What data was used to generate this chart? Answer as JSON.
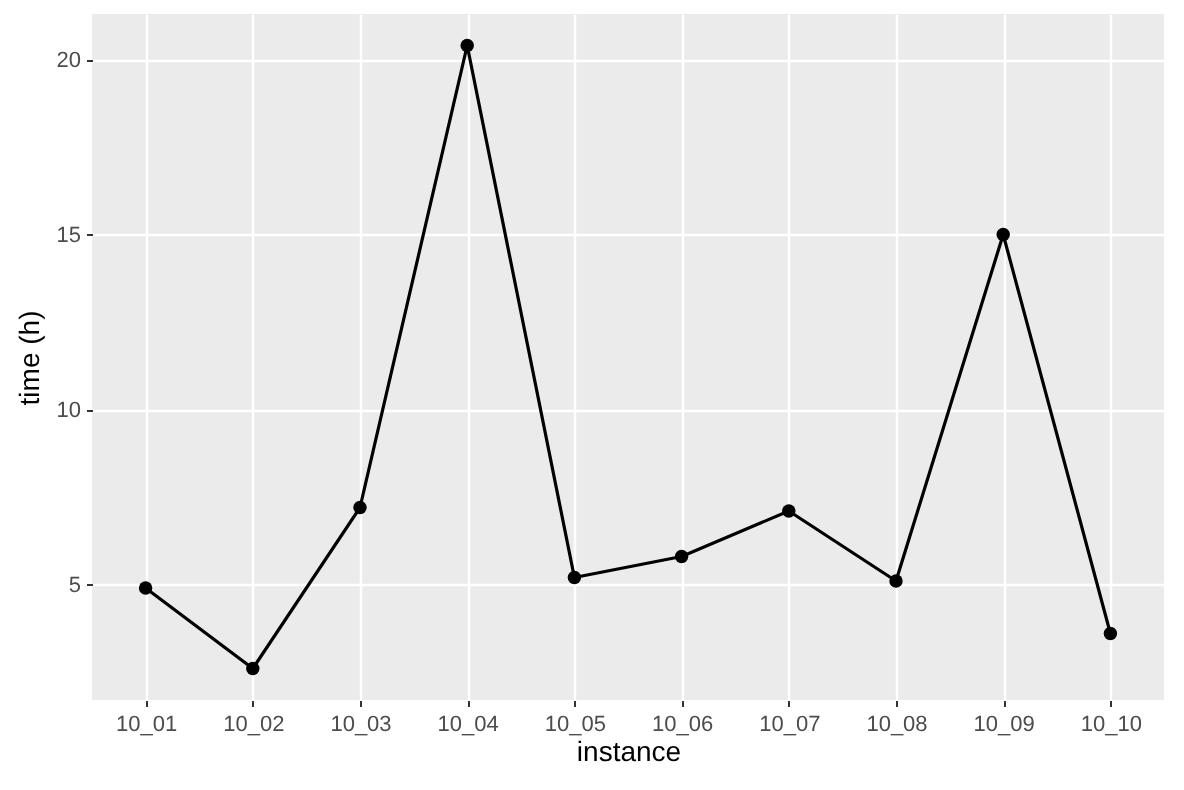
{
  "chart_data": {
    "type": "line",
    "xlabel": "instance",
    "ylabel": "time (h)",
    "categories": [
      "10_01",
      "10_02",
      "10_03",
      "10_04",
      "10_05",
      "10_06",
      "10_07",
      "10_08",
      "10_09",
      "10_10"
    ],
    "series": [
      {
        "color": "#000000",
        "values": [
          4.9,
          2.6,
          7.2,
          20.4,
          5.2,
          5.8,
          7.1,
          5.1,
          15.0,
          3.6
        ]
      }
    ],
    "ylim": [
      1.7,
      21.3
    ],
    "yticks": [
      5,
      10,
      15,
      20
    ],
    "grid": true,
    "marker": "circle",
    "line_style": "solid"
  }
}
